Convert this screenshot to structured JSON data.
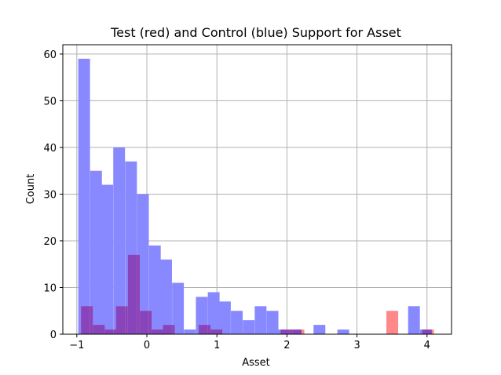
{
  "chart_data": {
    "type": "bar",
    "title": "Test (red) and Control (blue) Support for Asset",
    "xlabel": "Asset",
    "ylabel": "Count",
    "xlim": [
      -1.2,
      4.35
    ],
    "ylim": [
      0,
      62
    ],
    "xticks": [
      -1,
      0,
      1,
      2,
      3,
      4
    ],
    "yticks": [
      0,
      10,
      20,
      30,
      40,
      50,
      60
    ],
    "grid": true,
    "legend": "none",
    "colors": {
      "control": "#8888ff",
      "test": "#ff8888",
      "overlap": "#8844bb",
      "grid": "#b0b0b0",
      "axis": "#000000"
    },
    "series": [
      {
        "color_key": "control",
        "bin_width": 0.168,
        "bins": [
          [
            -0.98,
            59
          ],
          [
            -0.81,
            35
          ],
          [
            -0.65,
            32
          ],
          [
            -0.48,
            40
          ],
          [
            -0.31,
            37
          ],
          [
            -0.14,
            30
          ],
          [
            0.03,
            19
          ],
          [
            0.19,
            16
          ],
          [
            0.36,
            11
          ],
          [
            0.53,
            1
          ],
          [
            0.7,
            8
          ],
          [
            0.87,
            9
          ],
          [
            1.03,
            7
          ],
          [
            1.2,
            5
          ],
          [
            1.37,
            3
          ],
          [
            1.54,
            6
          ],
          [
            1.71,
            5
          ],
          [
            1.87,
            1
          ],
          [
            2.04,
            1
          ],
          [
            2.38,
            2
          ],
          [
            2.72,
            1
          ],
          [
            3.73,
            6
          ],
          [
            3.9,
            1
          ]
        ]
      },
      {
        "color_key": "test",
        "bin_width": 0.168,
        "bins": [
          [
            -0.94,
            6
          ],
          [
            -0.77,
            2
          ],
          [
            -0.6,
            1
          ],
          [
            -0.44,
            6
          ],
          [
            -0.27,
            17
          ],
          [
            -0.1,
            5
          ],
          [
            0.07,
            1
          ],
          [
            0.23,
            2
          ],
          [
            0.74,
            2
          ],
          [
            0.91,
            1
          ],
          [
            1.91,
            1
          ],
          [
            2.08,
            1
          ],
          [
            3.42,
            5
          ],
          [
            3.93,
            1
          ]
        ]
      }
    ]
  }
}
